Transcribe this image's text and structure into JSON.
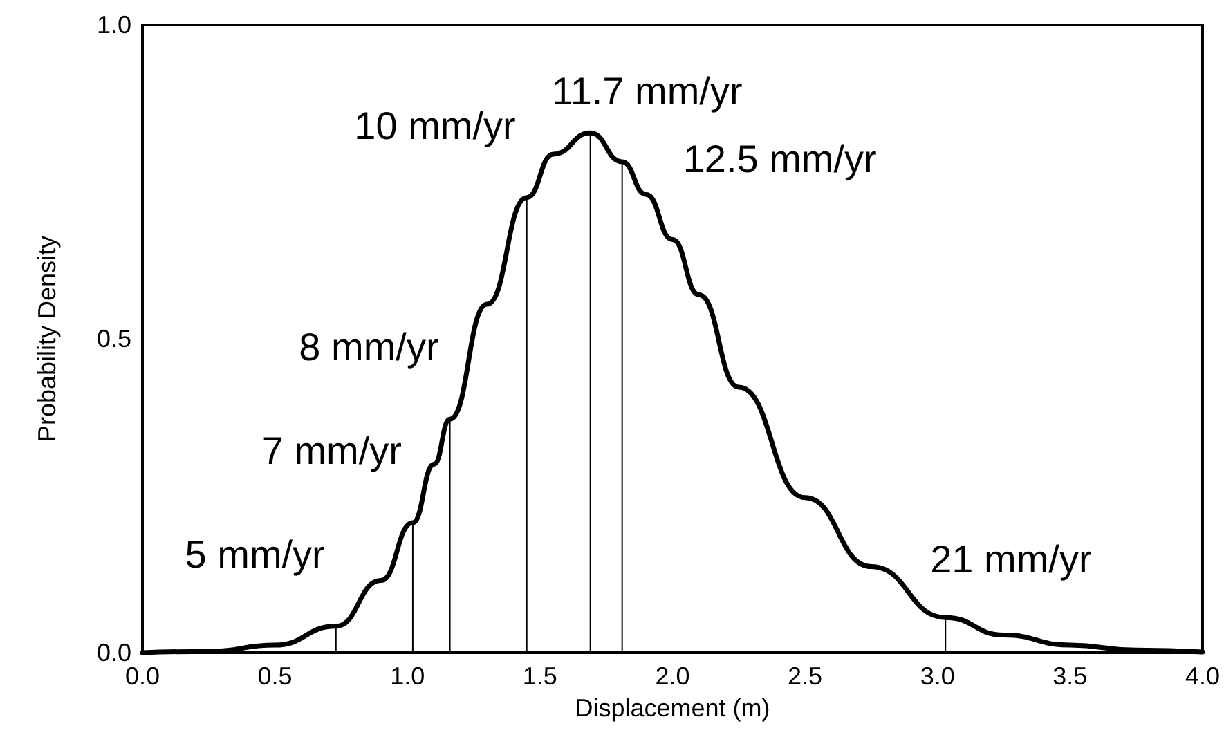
{
  "chart_data": {
    "type": "line",
    "xlabel": "Displacement (m)",
    "ylabel": "Probability Density",
    "x": [
      0,
      0.25,
      0.5,
      0.73,
      0.9,
      1.02,
      1.1,
      1.16,
      1.3,
      1.45,
      1.55,
      1.69,
      1.81,
      1.9,
      2.0,
      2.1,
      2.25,
      2.5,
      2.75,
      3.03,
      3.25,
      3.5,
      3.75,
      4.0
    ],
    "series": [
      {
        "color": "#000000",
        "values": [
          0,
          0.002,
          0.012,
          0.042,
          0.115,
          0.207,
          0.3,
          0.372,
          0.555,
          0.725,
          0.794,
          0.828,
          0.782,
          0.73,
          0.658,
          0.57,
          0.423,
          0.247,
          0.137,
          0.056,
          0.028,
          0.012,
          0.004,
          0.001
        ]
      },
      {
        "type": "bar",
        "color": "#000000",
        "x": [
          0.73,
          1.02,
          1.16,
          1.45,
          1.69,
          1.81,
          3.03
        ],
        "values": [
          0.042,
          0.207,
          0.372,
          0.725,
          0.828,
          0.782,
          0.056
        ]
      }
    ],
    "annotations": [
      {
        "text": "5 mm/yr",
        "x": 0.73,
        "y": 0.042
      },
      {
        "text": "7 mm/yr",
        "x": 1.02,
        "y": 0.207
      },
      {
        "text": "8 mm/yr",
        "x": 1.16,
        "y": 0.372
      },
      {
        "text": "10 mm/yr",
        "x": 1.45,
        "y": 0.725
      },
      {
        "text": "11.7 mm/yr",
        "x": 1.69,
        "y": 0.828
      },
      {
        "text": "12.5 mm/yr",
        "x": 1.81,
        "y": 0.782
      },
      {
        "text": "21 mm/yr",
        "x": 3.03,
        "y": 0.056
      }
    ],
    "xlim": [
      0,
      4
    ],
    "xticks": [
      {
        "value": 0,
        "label": "0.0"
      },
      {
        "value": 0.5,
        "label": "0.5"
      },
      {
        "value": 1,
        "label": "1.0"
      },
      {
        "value": 1.5,
        "label": "1.5"
      },
      {
        "value": 2,
        "label": "2.0"
      },
      {
        "value": 2.5,
        "label": "2.5"
      },
      {
        "value": 3,
        "label": "3.0"
      },
      {
        "value": 3.5,
        "label": "3.5"
      },
      {
        "value": 4,
        "label": "4.0"
      }
    ],
    "ylim": [
      0,
      1
    ],
    "yticks": [
      {
        "value": 0,
        "label": "0.0"
      },
      {
        "value": 0.5,
        "label": "0.5"
      },
      {
        "value": 1,
        "label": "1.0"
      }
    ],
    "grid": false,
    "marker": "none",
    "line_style": "solid"
  }
}
